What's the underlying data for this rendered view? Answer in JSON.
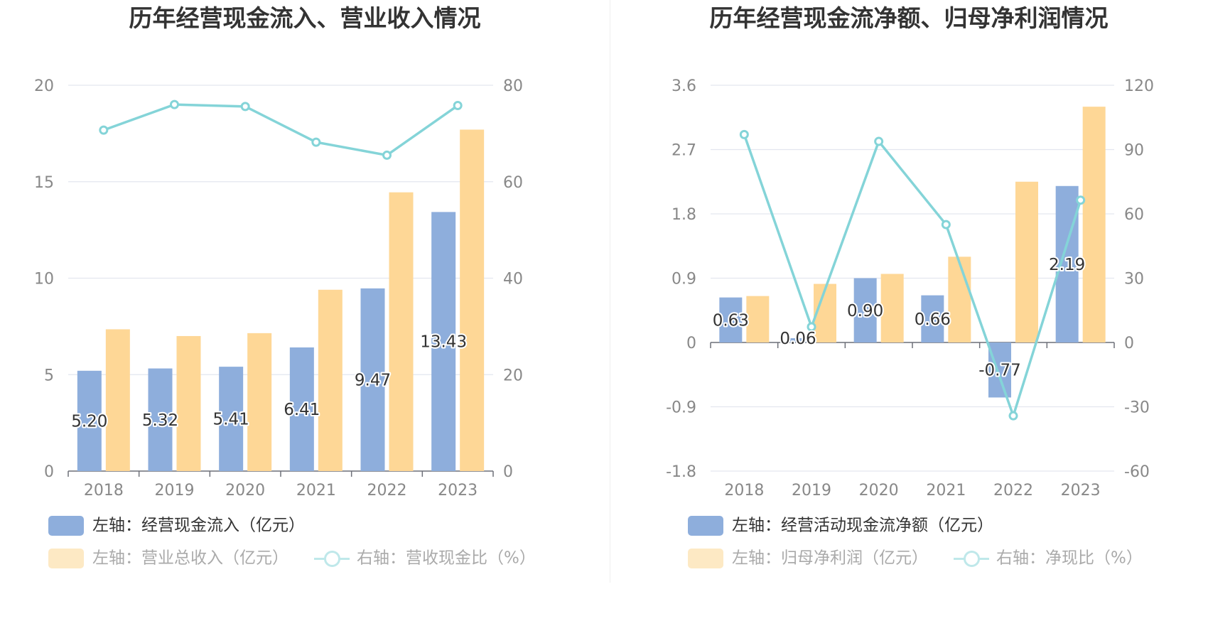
{
  "colors": {
    "blue": "#8eaedc",
    "orange": "#fed796",
    "teal": "#84d4d8",
    "grid": "#e3e6ef",
    "axis_text": "#888888",
    "label_text": "#333333",
    "muted_legend": "#aaaaaa"
  },
  "chart_data": [
    {
      "type": "bar",
      "title": "历年经营现金流入、营业收入情况",
      "categories": [
        "2018",
        "2019",
        "2020",
        "2021",
        "2022",
        "2023"
      ],
      "left_axis": {
        "ylim": [
          0,
          20
        ],
        "ticks": [
          "0",
          "5",
          "10",
          "15",
          "20"
        ]
      },
      "right_axis": {
        "ylim": [
          0,
          80
        ],
        "ticks": [
          "0",
          "20",
          "40",
          "60",
          "80"
        ]
      },
      "series": [
        {
          "name": "左轴：经营现金流入（亿元）",
          "type": "bar",
          "axis": "left",
          "color": "#8eaedc",
          "values": [
            5.2,
            5.32,
            5.41,
            6.41,
            9.47,
            13.43
          ],
          "labels": [
            "5.20",
            "5.32",
            "5.41",
            "6.41",
            "9.47",
            "13.43"
          ]
        },
        {
          "name": "左轴：营业总收入（亿元）",
          "type": "bar",
          "axis": "left",
          "color": "#fed796",
          "values": [
            7.35,
            7.0,
            7.15,
            9.4,
            14.45,
            17.7
          ]
        },
        {
          "name": "右轴：营收现金比（%）",
          "type": "line",
          "axis": "right",
          "color": "#84d4d8",
          "values": [
            70.7,
            76.0,
            75.6,
            68.2,
            65.5,
            75.8
          ]
        }
      ],
      "grid": true,
      "legend_position": "bottom-left"
    },
    {
      "type": "bar",
      "title": "历年经营现金流净额、归母净利润情况",
      "categories": [
        "2018",
        "2019",
        "2020",
        "2021",
        "2022",
        "2023"
      ],
      "left_axis": {
        "ylim": [
          -1.8,
          3.6
        ],
        "ticks": [
          "-1.8",
          "-0.9",
          "0",
          "0.9",
          "1.8",
          "2.7",
          "3.6"
        ]
      },
      "right_axis": {
        "ylim": [
          -60,
          120
        ],
        "ticks": [
          "-60",
          "-30",
          "0",
          "30",
          "60",
          "90",
          "120"
        ]
      },
      "series": [
        {
          "name": "左轴：经营活动现金流净额（亿元）",
          "type": "bar",
          "axis": "left",
          "color": "#8eaedc",
          "values": [
            0.63,
            0.06,
            0.9,
            0.66,
            -0.77,
            2.19
          ],
          "labels": [
            "0.63",
            "0.06",
            "0.90",
            "0.66",
            "-0.77",
            "2.19"
          ]
        },
        {
          "name": "左轴：归母净利润（亿元）",
          "type": "bar",
          "axis": "left",
          "color": "#fed796",
          "values": [
            0.65,
            0.82,
            0.96,
            1.2,
            2.25,
            3.3
          ]
        },
        {
          "name": "右轴：净现比（%）",
          "type": "line",
          "axis": "right",
          "color": "#84d4d8",
          "values": [
            97.0,
            7.3,
            93.8,
            55.0,
            -34.2,
            66.4
          ]
        }
      ],
      "grid": true,
      "legend_position": "bottom-left"
    }
  ]
}
